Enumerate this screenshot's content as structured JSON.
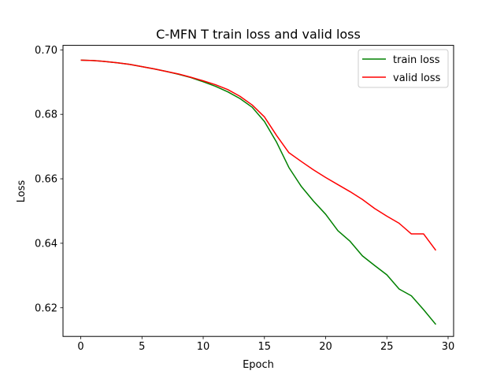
{
  "chart_data": {
    "type": "line",
    "title": "C-MFN T train loss and valid loss",
    "xlabel": "Epoch",
    "ylabel": "Loss",
    "xlim": [
      -1.45,
      30.45
    ],
    "ylim": [
      0.6111,
      0.7014
    ],
    "xticks": [
      0,
      5,
      10,
      15,
      20,
      25,
      30
    ],
    "xtick_labels": [
      "0",
      "5",
      "10",
      "15",
      "20",
      "25",
      "30"
    ],
    "yticks": [
      0.62,
      0.64,
      0.66,
      0.68,
      0.7
    ],
    "ytick_labels": [
      "0.62",
      "0.64",
      "0.66",
      "0.68",
      "0.70"
    ],
    "grid": false,
    "legend_position": "upper right",
    "x": [
      0,
      1,
      2,
      3,
      4,
      5,
      6,
      7,
      8,
      9,
      10,
      11,
      12,
      13,
      14,
      15,
      16,
      17,
      18,
      19,
      20,
      21,
      22,
      23,
      24,
      25,
      26,
      27,
      28,
      29
    ],
    "series": [
      {
        "name": "train loss",
        "color": "#008000",
        "values": [
          0.6968,
          0.6967,
          0.6964,
          0.696,
          0.6955,
          0.6948,
          0.6941,
          0.6933,
          0.6924,
          0.6914,
          0.6901,
          0.6887,
          0.687,
          0.6849,
          0.6822,
          0.6778,
          0.6713,
          0.6635,
          0.6577,
          0.6531,
          0.649,
          0.6439,
          0.6406,
          0.6361,
          0.6331,
          0.6302,
          0.6258,
          0.6237,
          0.6194,
          0.6148
        ]
      },
      {
        "name": "valid loss",
        "color": "#ff0000",
        "values": [
          0.6968,
          0.6967,
          0.6964,
          0.696,
          0.6955,
          0.6948,
          0.6941,
          0.6933,
          0.6925,
          0.6915,
          0.6904,
          0.6892,
          0.6877,
          0.6856,
          0.6829,
          0.6792,
          0.6734,
          0.6681,
          0.6654,
          0.6628,
          0.6604,
          0.6582,
          0.656,
          0.6536,
          0.6508,
          0.6484,
          0.6462,
          0.6429,
          0.6429,
          0.6378
        ]
      }
    ]
  }
}
